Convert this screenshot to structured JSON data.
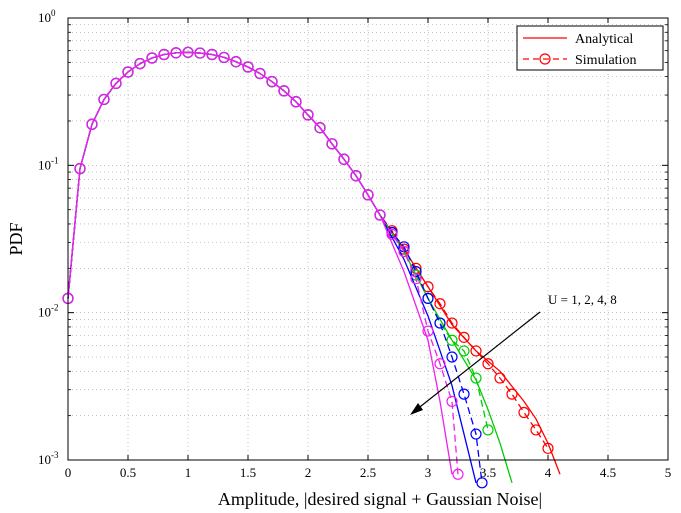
{
  "chart_data": {
    "type": "line",
    "title": "",
    "xlabel": "Amplitude, |desired signal + Gaussian Noise|",
    "ylabel": "PDF",
    "xlim": [
      0,
      5
    ],
    "ylim": [
      0.001,
      1
    ],
    "yscale": "log",
    "grid": true,
    "legend_position": "top-right",
    "x_ticks": [
      "0",
      "0.5",
      "1",
      "1.5",
      "2",
      "2.5",
      "3",
      "3.5",
      "4",
      "4.5",
      "5"
    ],
    "y_ticks": [
      {
        "base": "10",
        "exp": "-3"
      },
      {
        "base": "10",
        "exp": "-2"
      },
      {
        "base": "10",
        "exp": "-1"
      },
      {
        "base": "10",
        "exp": "0"
      }
    ],
    "legend": [
      {
        "label": "Analytical",
        "style": "solid"
      },
      {
        "label": "Simulation",
        "style": "dashed-circle"
      }
    ],
    "annotation": "U = 1, 2, 4, 8",
    "common_x": [
      0,
      0.1,
      0.2,
      0.3,
      0.4,
      0.5,
      0.6,
      0.7,
      0.8,
      0.9,
      1.0,
      1.1,
      1.2,
      1.3,
      1.4,
      1.5,
      1.6,
      1.7,
      1.8,
      1.9,
      2.0,
      2.1,
      2.2,
      2.3,
      2.4,
      2.5,
      2.6
    ],
    "common_y": [
      0.0125,
      0.095,
      0.19,
      0.28,
      0.36,
      0.43,
      0.49,
      0.535,
      0.565,
      0.58,
      0.585,
      0.578,
      0.565,
      0.54,
      0.505,
      0.465,
      0.42,
      0.37,
      0.32,
      0.27,
      0.22,
      0.18,
      0.14,
      0.11,
      0.085,
      0.063,
      0.046
    ],
    "series": [
      {
        "name": "U = 1",
        "color": "#ff0000",
        "analytical": {
          "x": [
            2.6,
            2.8,
            3.0,
            3.2,
            3.4,
            3.6,
            3.8,
            3.9,
            4.0,
            4.1
          ],
          "y": [
            0.046,
            0.027,
            0.015,
            0.0083,
            0.0055,
            0.004,
            0.0025,
            0.0019,
            0.0013,
            0.0008
          ]
        },
        "simulation": {
          "x": [
            2.6,
            2.7,
            2.8,
            2.9,
            3.0,
            3.1,
            3.2,
            3.3,
            3.4,
            3.5,
            3.6,
            3.7,
            3.8,
            3.9,
            4.0
          ],
          "y": [
            0.046,
            0.036,
            0.027,
            0.02,
            0.015,
            0.0115,
            0.0085,
            0.0068,
            0.0055,
            0.0045,
            0.0036,
            0.0028,
            0.0021,
            0.0016,
            0.0012
          ]
        }
      },
      {
        "name": "U = 2",
        "color": "#00cc00",
        "analytical": {
          "x": [
            2.6,
            2.8,
            3.0,
            3.2,
            3.4,
            3.5,
            3.6,
            3.7
          ],
          "y": [
            0.046,
            0.026,
            0.0125,
            0.0065,
            0.0035,
            0.0022,
            0.0013,
            0.0007
          ]
        },
        "simulation": {
          "x": [
            2.6,
            2.7,
            2.8,
            2.9,
            3.0,
            3.1,
            3.2,
            3.3,
            3.4,
            3.5
          ],
          "y": [
            0.046,
            0.035,
            0.026,
            0.018,
            0.0125,
            0.0085,
            0.0065,
            0.0055,
            0.0036,
            0.0016
          ]
        }
      },
      {
        "name": "U = 4",
        "color": "#0000ff",
        "analytical": {
          "x": [
            2.6,
            2.8,
            3.0,
            3.2,
            3.3,
            3.4
          ],
          "y": [
            0.045,
            0.023,
            0.0095,
            0.0032,
            0.0015,
            0.0007
          ]
        },
        "simulation": {
          "x": [
            2.6,
            2.7,
            2.8,
            2.9,
            3.0,
            3.1,
            3.2,
            3.3,
            3.4,
            3.45
          ],
          "y": [
            0.045,
            0.035,
            0.028,
            0.019,
            0.0125,
            0.0085,
            0.005,
            0.0028,
            0.0015,
            0.0007
          ]
        }
      },
      {
        "name": "U = 8",
        "color": "#ee22ee",
        "analytical": {
          "x": [
            2.6,
            2.8,
            3.0,
            3.1,
            3.2
          ],
          "y": [
            0.042,
            0.019,
            0.0065,
            0.0025,
            0.0008
          ]
        },
        "simulation": {
          "x": [
            2.6,
            2.7,
            2.8,
            2.9,
            3.0,
            3.1,
            3.2,
            3.25
          ],
          "y": [
            0.044,
            0.034,
            0.026,
            0.017,
            0.0075,
            0.0045,
            0.0025,
            0.0008
          ]
        }
      }
    ]
  }
}
